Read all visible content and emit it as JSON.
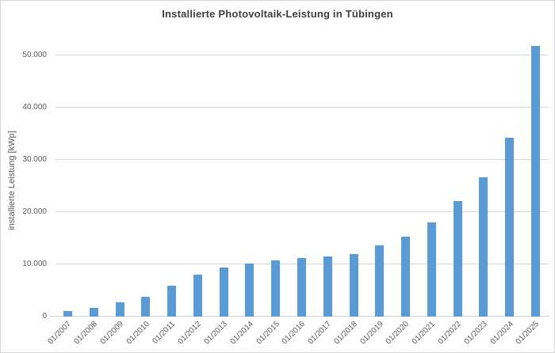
{
  "chart_data": {
    "type": "bar",
    "title": "Installierte Photovoltaik-Leistung in Tübingen",
    "ylabel": "installierte Leistung [kWp]",
    "xlabel": "",
    "categories": [
      "01/2007",
      "01/2008",
      "01/2009",
      "01/2010",
      "01/2011",
      "01/2012",
      "01/2013",
      "01/2014",
      "01/2015",
      "01/2016",
      "01/2017",
      "01/2018",
      "01/2019",
      "01/2020",
      "01/2021",
      "01/2022",
      "01/2023",
      "01/2024",
      "01/2025"
    ],
    "values": [
      1050,
      1550,
      2700,
      3700,
      5800,
      8000,
      9400,
      10150,
      10700,
      11100,
      11400,
      11850,
      13550,
      15250,
      17950,
      22050,
      26600,
      34200,
      51900
    ],
    "ylim": [
      0,
      52000
    ],
    "ytick_interval": 10000,
    "ytick_values": [
      0,
      10000,
      20000,
      30000,
      40000,
      50000
    ],
    "ytick_labels": [
      "0",
      "10.000",
      "20.000",
      "30.000",
      "40.000",
      "50.000"
    ],
    "grid": true,
    "legend": "none",
    "colors": {
      "bar": "#5B9BD5",
      "gridline": "#d9d9d9",
      "axis_text": "#595959",
      "title_text": "#3f3f3f",
      "background": "#ffffff",
      "frame_border": "#d6d6d6"
    }
  }
}
